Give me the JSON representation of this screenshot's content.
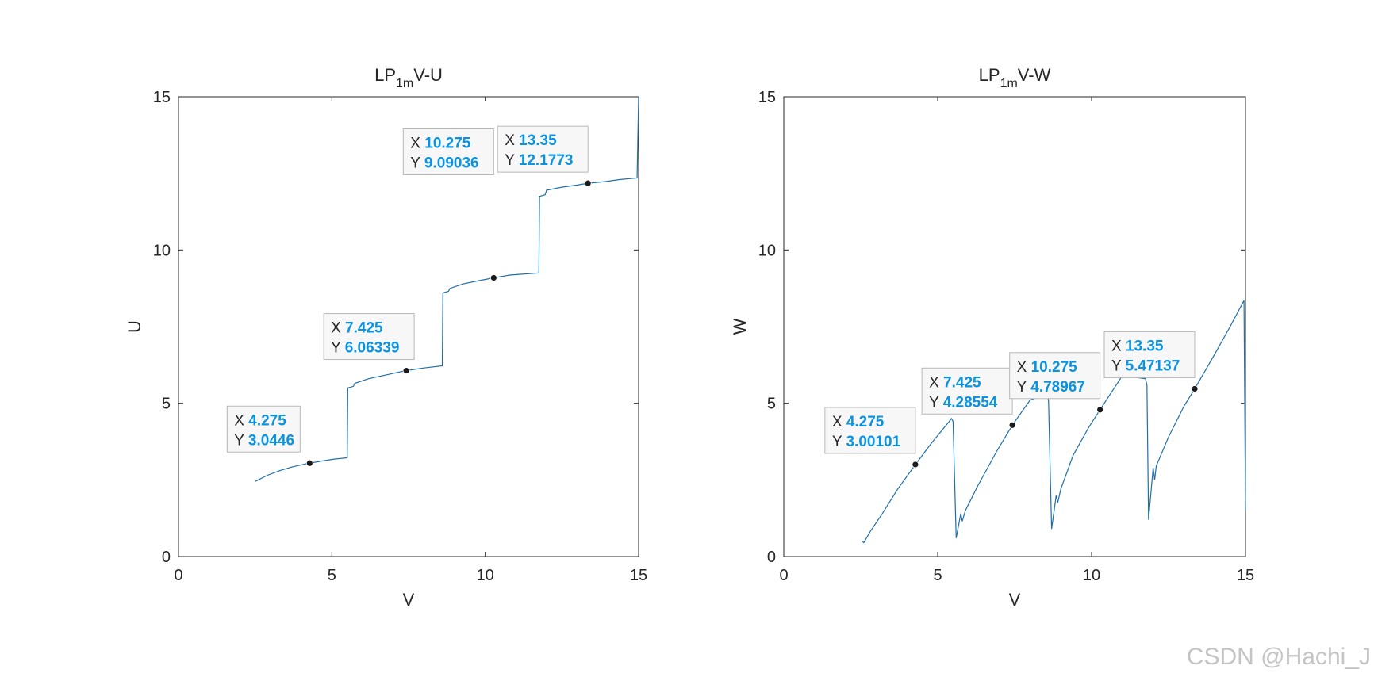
{
  "watermark": "CSDN @Hachi_J",
  "colors": {
    "line": "#1f6fab",
    "tip_value": "#0a93e0",
    "tip_label": "#262626",
    "marker": "#1a1a1a"
  },
  "chart_data": [
    {
      "type": "line",
      "title_main": "LP",
      "title_sub": "1m",
      "title_tail": "V-U",
      "xlabel": "V",
      "ylabel": "U",
      "xlim": [
        0,
        15
      ],
      "ylim": [
        0,
        15
      ],
      "xticks": [
        "0",
        "5",
        "10",
        "15"
      ],
      "yticks": [
        "0",
        "5",
        "10",
        "15"
      ],
      "grid": false,
      "series": [
        {
          "x": [
            2.5,
            2.9,
            3.3,
            3.7,
            4.1,
            4.275,
            4.7,
            5.1,
            5.5,
            5.52,
            5.7,
            5.75,
            6.2,
            6.8,
            7.425,
            8.0,
            8.6,
            8.62,
            8.8,
            8.85,
            9.3,
            9.8,
            10.275,
            10.8,
            11.75,
            11.77,
            11.95,
            12.0,
            12.5,
            13.0,
            13.35,
            13.9,
            14.4,
            14.95,
            15.0
          ],
          "y": [
            2.45,
            2.65,
            2.8,
            2.92,
            3.01,
            3.0446,
            3.12,
            3.18,
            3.22,
            5.5,
            5.55,
            5.65,
            5.8,
            5.93,
            6.06339,
            6.15,
            6.22,
            8.6,
            8.65,
            8.75,
            8.9,
            9.0,
            9.09036,
            9.18,
            9.25,
            11.75,
            11.8,
            11.95,
            12.05,
            12.12,
            12.1773,
            12.23,
            12.3,
            12.35,
            15.0
          ]
        }
      ],
      "datatips": [
        {
          "x": 4.275,
          "y": 3.0446,
          "x_label": "X",
          "y_label": "Y",
          "x_text": "4.275",
          "y_text": "3.0446"
        },
        {
          "x": 7.425,
          "y": 6.06339,
          "x_label": "X",
          "y_label": "Y",
          "x_text": "7.425",
          "y_text": "6.06339"
        },
        {
          "x": 10.275,
          "y": 9.09036,
          "x_label": "X",
          "y_label": "Y",
          "x_text": "10.275",
          "y_text": "9.09036"
        },
        {
          "x": 13.35,
          "y": 12.1773,
          "x_label": "X",
          "y_label": "Y",
          "x_text": "13.35",
          "y_text": "12.1773"
        }
      ]
    },
    {
      "type": "line",
      "title_main": "LP",
      "title_sub": "1m",
      "title_tail": "V-W",
      "xlabel": "V",
      "ylabel": "W",
      "xlim": [
        0,
        15
      ],
      "ylim": [
        0,
        15
      ],
      "xticks": [
        "0",
        "5",
        "10",
        "15"
      ],
      "yticks": [
        "0",
        "5",
        "10",
        "15"
      ],
      "grid": false,
      "series": [
        {
          "x": [
            2.55,
            2.6,
            2.8,
            3.2,
            3.7,
            4.275,
            4.8,
            5.45,
            5.5,
            5.6,
            5.75,
            5.8,
            5.9,
            6.3,
            6.9,
            7.425,
            8.0,
            8.55,
            8.6,
            8.7,
            8.85,
            8.9,
            9.0,
            9.4,
            9.9,
            10.275,
            11.0,
            11.75,
            11.8,
            11.85,
            12.0,
            12.05,
            12.1,
            12.5,
            13.0,
            13.35,
            14.0,
            14.5,
            14.95,
            15.0
          ],
          "y": [
            0.5,
            0.45,
            0.8,
            1.4,
            2.2,
            3.00101,
            3.7,
            4.5,
            4.4,
            0.6,
            1.4,
            1.15,
            1.5,
            2.3,
            3.4,
            4.28554,
            5.1,
            5.3,
            5.1,
            0.9,
            2.0,
            1.75,
            2.2,
            3.3,
            4.2,
            4.78967,
            5.9,
            5.8,
            5.6,
            1.2,
            2.9,
            2.5,
            2.95,
            3.9,
            4.9,
            5.47137,
            6.6,
            7.5,
            8.35,
            1.5
          ]
        }
      ],
      "datatips": [
        {
          "x": 4.275,
          "y": 3.00101,
          "x_label": "X",
          "y_label": "Y",
          "x_text": "4.275",
          "y_text": "3.00101"
        },
        {
          "x": 7.425,
          "y": 4.28554,
          "x_label": "X",
          "y_label": "Y",
          "x_text": "7.425",
          "y_text": "4.28554"
        },
        {
          "x": 10.275,
          "y": 4.78967,
          "x_label": "X",
          "y_label": "Y",
          "x_text": "10.275",
          "y_text": "4.78967"
        },
        {
          "x": 13.35,
          "y": 5.47137,
          "x_label": "X",
          "y_label": "Y",
          "x_text": "13.35",
          "y_text": "5.47137"
        }
      ]
    }
  ]
}
